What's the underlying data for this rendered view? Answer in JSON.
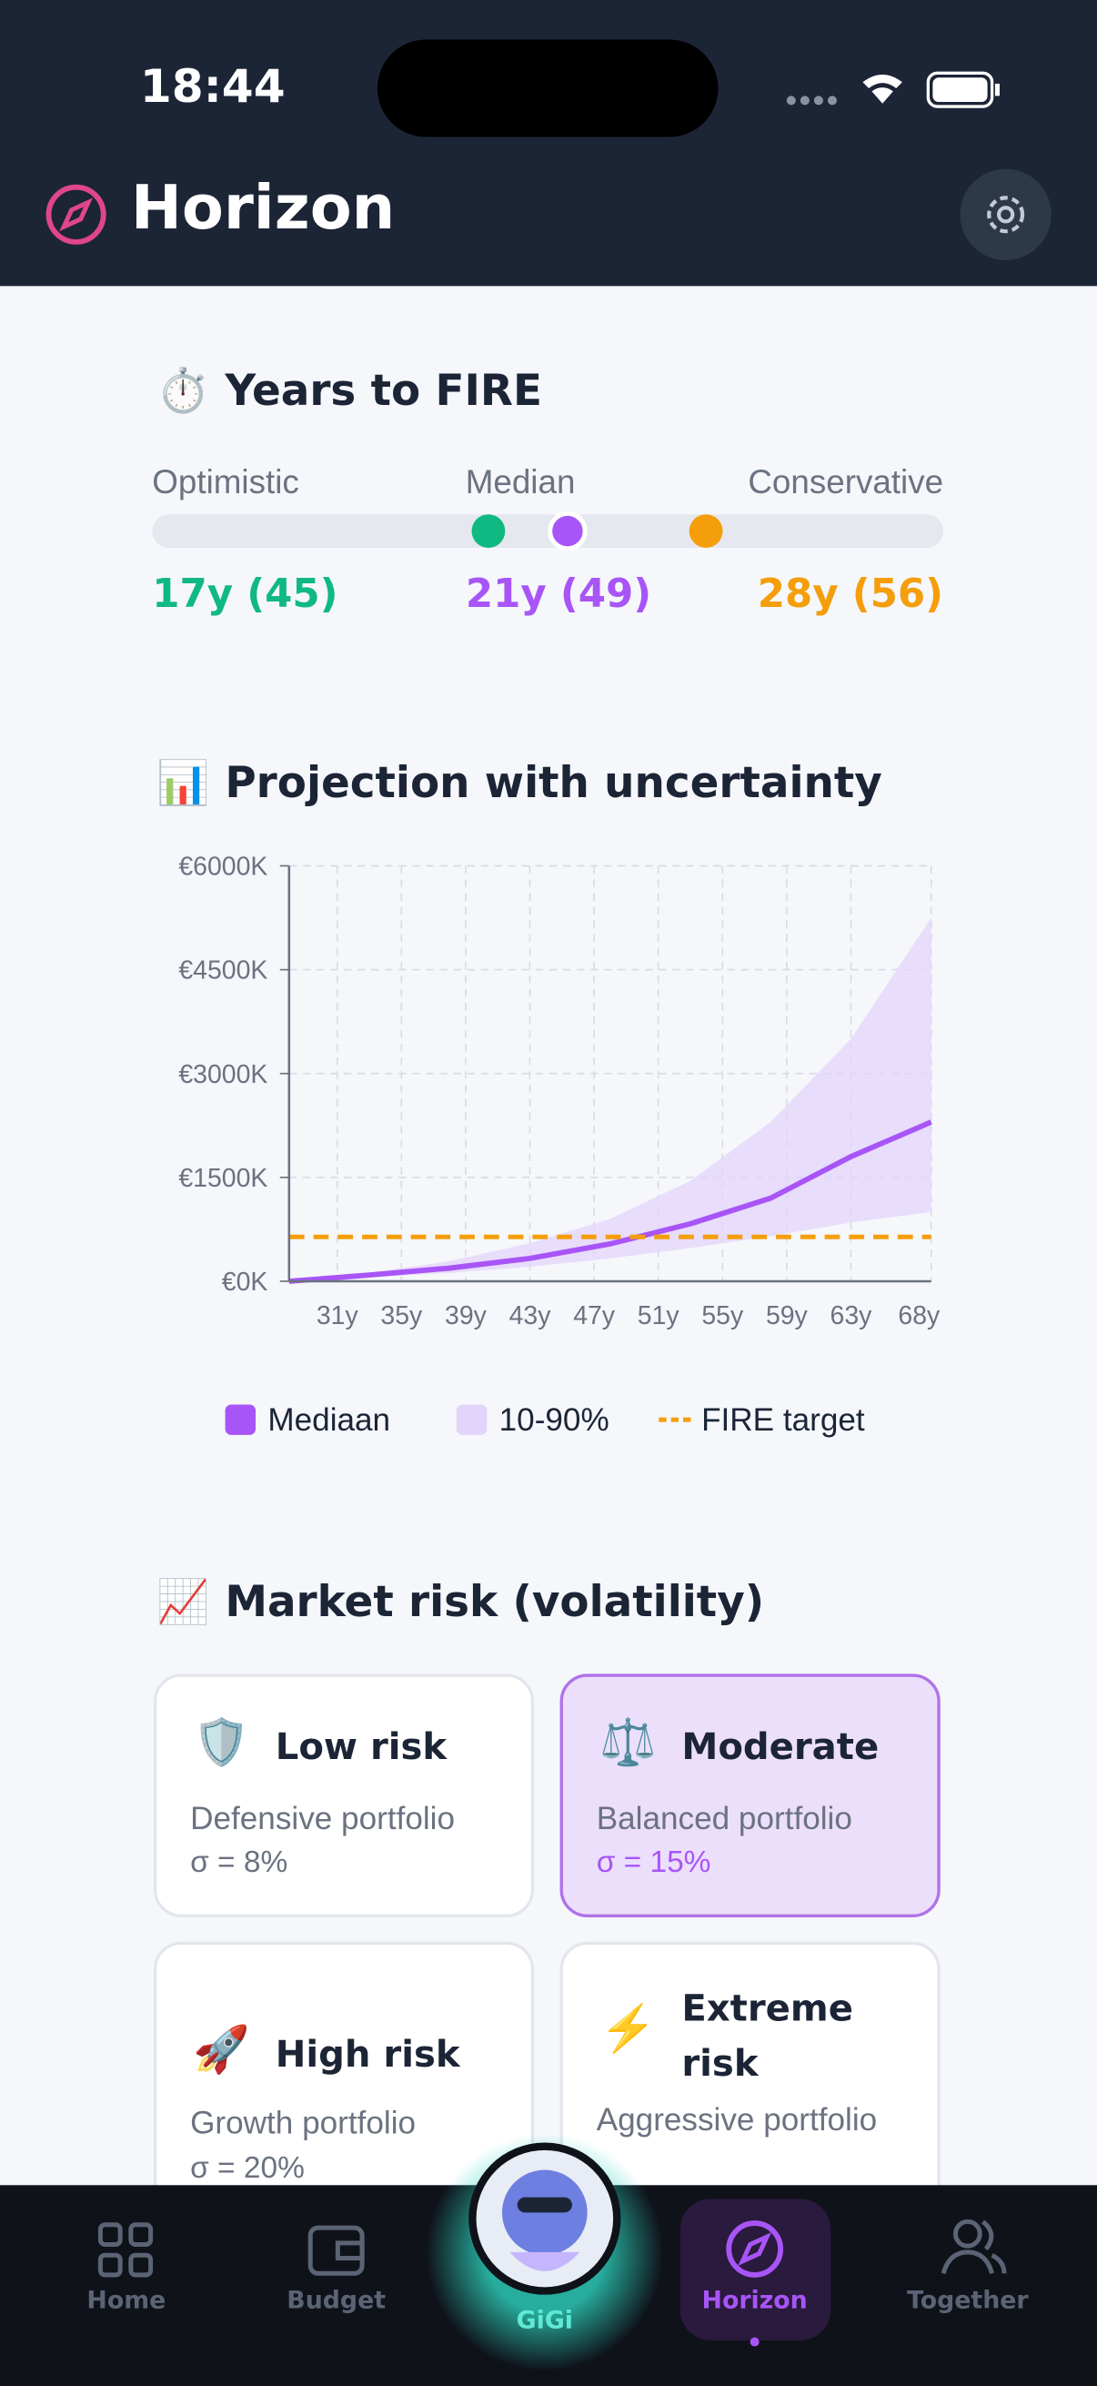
{
  "status": {
    "time": "18:44"
  },
  "header": {
    "title": "Horizon"
  },
  "fire": {
    "icon": "⏱️",
    "title": "Years to FIRE",
    "track_range": [
      0,
      40
    ],
    "scenarios": [
      {
        "name": "Optimistic",
        "years": 17,
        "label": "17y (45)",
        "color": "#10b981"
      },
      {
        "name": "Median",
        "years": 21,
        "label": "21y (49)",
        "color": "#a855f7"
      },
      {
        "name": "Conservative",
        "years": 28,
        "label": "28y (56)",
        "color": "#f59e0b"
      }
    ]
  },
  "chart_data": {
    "type": "line",
    "icon": "📊",
    "title": "Projection with uncertainty",
    "x": [
      28,
      33,
      38,
      43,
      48,
      53,
      58,
      63,
      68
    ],
    "series": [
      {
        "name": "Mediaan",
        "color": "#a855f7",
        "values": [
          0,
          90,
          190,
          330,
          540,
          830,
          1200,
          1800,
          2300
        ]
      },
      {
        "name": "10-90%",
        "color": "#e3d4fb",
        "lower": [
          0,
          60,
          120,
          210,
          330,
          480,
          650,
          850,
          1000
        ],
        "upper": [
          0,
          120,
          290,
          550,
          900,
          1450,
          2300,
          3500,
          5250
        ]
      }
    ],
    "target": 640,
    "target_name": "FIRE target",
    "target_color": "#f59e0b",
    "xlim": [
      28,
      68
    ],
    "xticks": [
      {
        "value": 31,
        "label": "31y"
      },
      {
        "value": 35,
        "label": "35y"
      },
      {
        "value": 39,
        "label": "39y"
      },
      {
        "value": 43,
        "label": "43y"
      },
      {
        "value": 47,
        "label": "47y"
      },
      {
        "value": 51,
        "label": "51y"
      },
      {
        "value": 55,
        "label": "55y"
      },
      {
        "value": 59,
        "label": "59y"
      },
      {
        "value": 63,
        "label": "63y"
      },
      {
        "value": 68,
        "label": "68y"
      }
    ],
    "ylim": [
      0,
      6000
    ],
    "yticks": [
      {
        "value": 0,
        "label": "€0K"
      },
      {
        "value": 1500,
        "label": "€1500K"
      },
      {
        "value": 3000,
        "label": "€3000K"
      },
      {
        "value": 4500,
        "label": "€4500K"
      },
      {
        "value": 6000,
        "label": "€6000K"
      }
    ],
    "grid": true
  },
  "risk": {
    "icon": "📈",
    "title": "Market risk (volatility)",
    "cards": [
      {
        "icon": "🛡️",
        "title": "Low risk",
        "subtitle": "Defensive portfolio",
        "sigma": "σ  =  8%"
      },
      {
        "icon": "⚖️",
        "title": "Moderate",
        "subtitle": "Balanced portfolio",
        "sigma": "σ  =  15%"
      },
      {
        "icon": "🚀",
        "title": "High risk",
        "subtitle": "Growth portfolio",
        "sigma": "σ  =  20%"
      },
      {
        "icon": "⚡",
        "title": "Extreme risk",
        "subtitle": "Aggressive portfolio"
      }
    ]
  },
  "nav": [
    "Home",
    "Budget",
    "GiGi",
    "Horizon",
    "Together"
  ]
}
